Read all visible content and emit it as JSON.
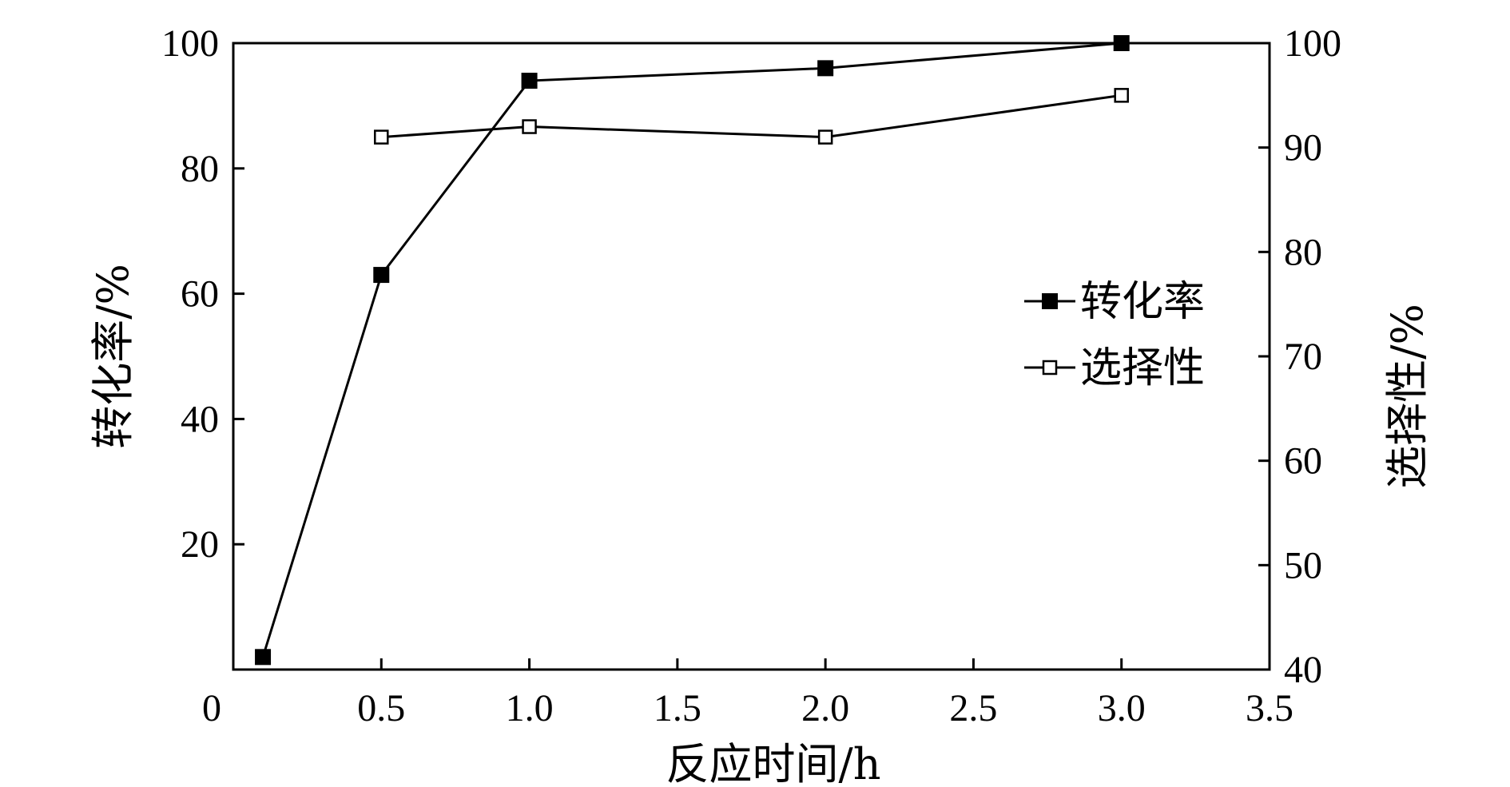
{
  "chart_data": {
    "type": "line",
    "xlabel": "反应时间/h",
    "ylabel_left": "转化率/%",
    "ylabel_right": "选择性/%",
    "x_ticks": [
      "0",
      "0.5",
      "1.0",
      "1.5",
      "2.0",
      "2.5",
      "3.0",
      "3.5"
    ],
    "y_left_ticks": [
      "20",
      "40",
      "60",
      "80",
      "100"
    ],
    "y_right_ticks": [
      "40",
      "50",
      "60",
      "70",
      "80",
      "90",
      "100"
    ],
    "xlim": [
      0,
      3.5
    ],
    "ylim_left": [
      0,
      100
    ],
    "ylim_right": [
      40,
      100
    ],
    "grid": false,
    "legend_position": "right",
    "series": [
      {
        "name": "转化率",
        "axis": "left",
        "marker": "filled-square",
        "x": [
          0.1,
          0.5,
          1.0,
          2.0,
          3.0
        ],
        "y": [
          2,
          63,
          94,
          96,
          100
        ]
      },
      {
        "name": "选择性",
        "axis": "right",
        "marker": "open-square",
        "x": [
          0.5,
          1.0,
          2.0,
          3.0
        ],
        "y": [
          91,
          92,
          91,
          95
        ]
      }
    ],
    "colors": {
      "line": "#000000",
      "background": "#ffffff"
    }
  }
}
